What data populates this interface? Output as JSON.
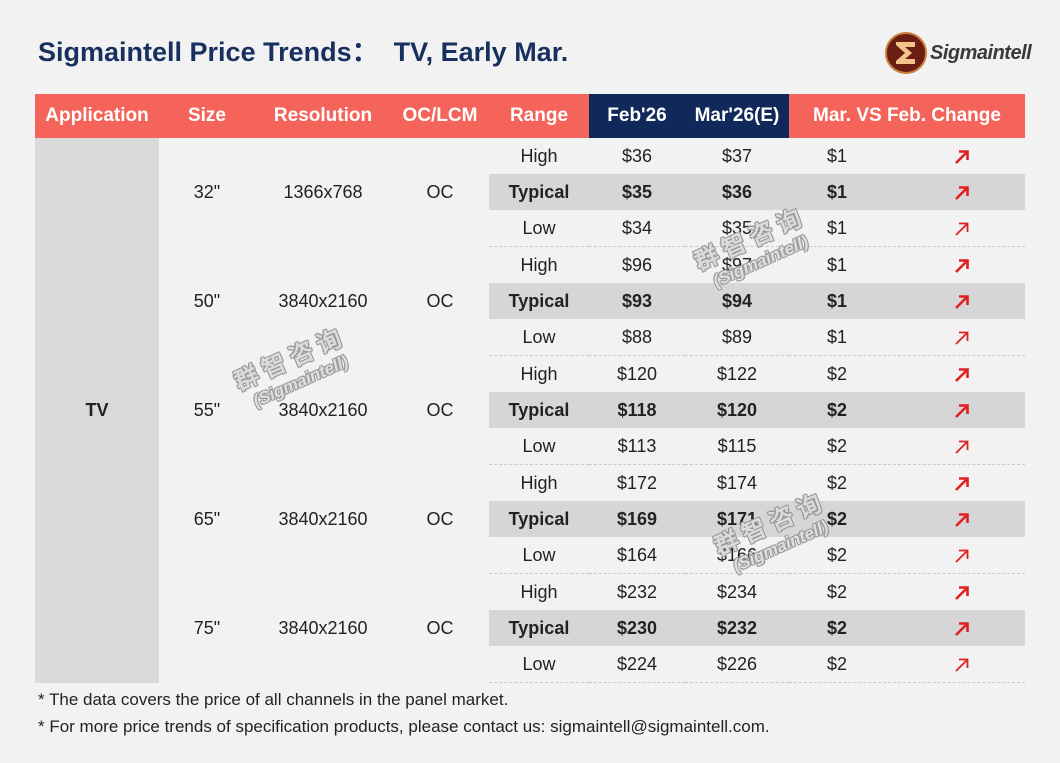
{
  "header": {
    "title": "Sigmaintell Price Trends：  TV, Early Mar.",
    "logo_text": "Sigmaintell"
  },
  "colors": {
    "title": "#17305e",
    "header_red": "#f4645a",
    "header_navy": "#10285a",
    "arrow_red": "#e02020"
  },
  "table": {
    "columns": [
      "Application",
      "Size",
      "Resolution",
      "OC/LCM",
      "Range",
      "Feb'26",
      "Mar'26(E)",
      "Mar. VS Feb. Change"
    ],
    "application": "TV",
    "groups": [
      {
        "size": "32\"",
        "resolution": "1366x768",
        "oc_lcm": "OC",
        "rows": [
          {
            "range": "High",
            "feb": "$36",
            "mar": "$37",
            "change": "$1",
            "icon": "arrow-up-right-icon"
          },
          {
            "range": "Typical",
            "feb": "$35",
            "mar": "$36",
            "change": "$1",
            "icon": "arrow-up-right-icon"
          },
          {
            "range": "Low",
            "feb": "$34",
            "mar": "$35",
            "change": "$1",
            "icon": "arrow-up-right-icon"
          }
        ]
      },
      {
        "size": "50\"",
        "resolution": "3840x2160",
        "oc_lcm": "OC",
        "rows": [
          {
            "range": "High",
            "feb": "$96",
            "mar": "$97",
            "change": "$1",
            "icon": "arrow-up-right-icon"
          },
          {
            "range": "Typical",
            "feb": "$93",
            "mar": "$94",
            "change": "$1",
            "icon": "arrow-up-right-icon"
          },
          {
            "range": "Low",
            "feb": "$88",
            "mar": "$89",
            "change": "$1",
            "icon": "arrow-up-right-icon"
          }
        ]
      },
      {
        "size": "55\"",
        "resolution": "3840x2160",
        "oc_lcm": "OC",
        "rows": [
          {
            "range": "High",
            "feb": "$120",
            "mar": "$122",
            "change": "$2",
            "icon": "arrow-up-right-icon"
          },
          {
            "range": "Typical",
            "feb": "$118",
            "mar": "$120",
            "change": "$2",
            "icon": "arrow-up-right-icon"
          },
          {
            "range": "Low",
            "feb": "$113",
            "mar": "$115",
            "change": "$2",
            "icon": "arrow-up-right-icon"
          }
        ]
      },
      {
        "size": "65\"",
        "resolution": "3840x2160",
        "oc_lcm": "OC",
        "rows": [
          {
            "range": "High",
            "feb": "$172",
            "mar": "$174",
            "change": "$2",
            "icon": "arrow-up-right-icon"
          },
          {
            "range": "Typical",
            "feb": "$169",
            "mar": "$171",
            "change": "$2",
            "icon": "arrow-up-right-icon"
          },
          {
            "range": "Low",
            "feb": "$164",
            "mar": "$166",
            "change": "$2",
            "icon": "arrow-up-right-icon"
          }
        ]
      },
      {
        "size": "75\"",
        "resolution": "3840x2160",
        "oc_lcm": "OC",
        "rows": [
          {
            "range": "High",
            "feb": "$232",
            "mar": "$234",
            "change": "$2",
            "icon": "arrow-up-right-icon"
          },
          {
            "range": "Typical",
            "feb": "$230",
            "mar": "$232",
            "change": "$2",
            "icon": "arrow-up-right-icon"
          },
          {
            "range": "Low",
            "feb": "$224",
            "mar": "$226",
            "change": "$2",
            "icon": "arrow-up-right-icon"
          }
        ]
      }
    ]
  },
  "watermark": {
    "cn": "群智咨询",
    "en": "(Sigmaintell)"
  },
  "notes": [
    "* The data covers the price of all channels in the panel market.",
    "* For more price trends of specification products, please contact us: sigmaintell@sigmaintell.com."
  ]
}
